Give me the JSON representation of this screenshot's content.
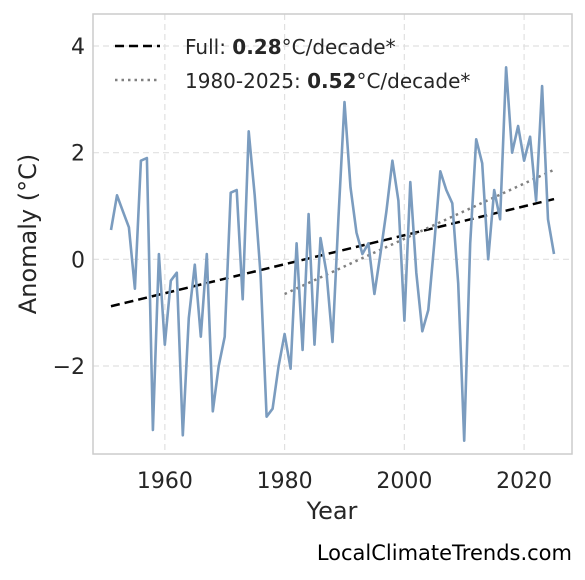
{
  "chart_data": {
    "type": "line",
    "xlabel": "Year",
    "ylabel": "Anomaly (°C)",
    "xlim": [
      1948,
      2028
    ],
    "ylim": [
      -3.65,
      4.6
    ],
    "xticks": [
      1960,
      1980,
      2000,
      2020
    ],
    "yticks": [
      -2,
      0,
      2,
      4
    ],
    "ytick_labels": [
      "−2",
      "0",
      "2",
      "4"
    ],
    "grid": true,
    "legend_position": "top-left",
    "series": [
      {
        "color": "#7b9cbf",
        "x": [
          1951,
          1952,
          1953,
          1954,
          1955,
          1956,
          1957,
          1958,
          1959,
          1960,
          1961,
          1962,
          1963,
          1964,
          1965,
          1966,
          1967,
          1968,
          1969,
          1970,
          1971,
          1972,
          1973,
          1974,
          1975,
          1976,
          1977,
          1978,
          1979,
          1980,
          1981,
          1982,
          1983,
          1984,
          1985,
          1986,
          1987,
          1988,
          1989,
          1990,
          1991,
          1992,
          1993,
          1994,
          1995,
          1996,
          1997,
          1998,
          1999,
          2000,
          2001,
          2002,
          2003,
          2004,
          2005,
          2006,
          2007,
          2008,
          2009,
          2010,
          2011,
          2012,
          2013,
          2014,
          2015,
          2016,
          2017,
          2018,
          2019,
          2020,
          2021,
          2022,
          2023,
          2024,
          2025
        ],
        "y": [
          0.55,
          1.2,
          0.9,
          0.6,
          -0.55,
          1.85,
          1.9,
          -3.2,
          0.1,
          -1.6,
          -0.4,
          -0.25,
          -3.3,
          -1.1,
          -0.1,
          -1.45,
          0.1,
          -2.85,
          -2.0,
          -1.45,
          1.25,
          1.3,
          -0.75,
          2.4,
          1.2,
          -0.3,
          -2.95,
          -2.8,
          -2.0,
          -1.4,
          -2.05,
          0.3,
          -1.7,
          0.85,
          -1.6,
          0.4,
          -0.25,
          -1.55,
          0.8,
          2.95,
          1.35,
          0.5,
          0.1,
          0.3,
          -0.65,
          0.1,
          0.9,
          1.85,
          1.1,
          -1.15,
          1.45,
          -0.25,
          -1.35,
          -0.95,
          0.3,
          1.65,
          1.3,
          1.05,
          -0.45,
          -3.4,
          0.3,
          2.25,
          1.8,
          0.0,
          1.3,
          0.75,
          3.6,
          2.0,
          2.5,
          1.85,
          2.3,
          1.1,
          3.25,
          0.75,
          0.1
        ]
      }
    ],
    "trends": [
      {
        "label_prefix": "Full: ",
        "value": "0.28",
        "label_suffix": "°C/decade*",
        "style": "dashed",
        "color": "#000000",
        "x": [
          1951,
          2025
        ],
        "y": [
          -0.88,
          1.13
        ]
      },
      {
        "label_prefix": "1980-2025: ",
        "value": "0.52",
        "label_suffix": "°C/decade*",
        "style": "dotted",
        "color": "#808080",
        "x": [
          1980,
          2025
        ],
        "y": [
          -0.65,
          1.68
        ]
      }
    ]
  },
  "watermark": "LocalClimateTrends.com"
}
